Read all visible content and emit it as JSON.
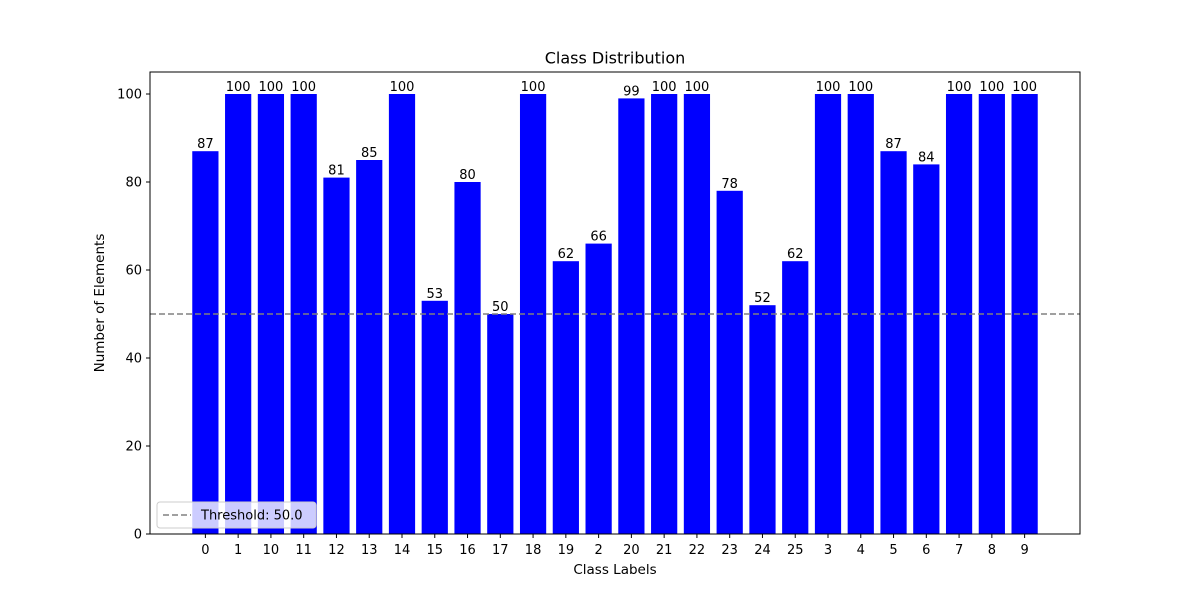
{
  "chart_data": {
    "type": "bar",
    "title": "Class Distribution",
    "xlabel": "Class Labels",
    "ylabel": "Number of Elements",
    "categories": [
      "0",
      "1",
      "10",
      "11",
      "12",
      "13",
      "14",
      "15",
      "16",
      "17",
      "18",
      "19",
      "2",
      "20",
      "21",
      "22",
      "23",
      "24",
      "25",
      "3",
      "4",
      "5",
      "6",
      "7",
      "8",
      "9"
    ],
    "values": [
      87,
      100,
      100,
      100,
      81,
      85,
      100,
      53,
      80,
      50,
      100,
      62,
      66,
      99,
      100,
      100,
      78,
      52,
      62,
      100,
      100,
      87,
      84,
      100,
      100,
      100
    ],
    "ylim": [
      0,
      105
    ],
    "yticks": [
      0,
      20,
      40,
      60,
      80,
      100
    ],
    "grid": false,
    "bar_color": "#0000ff",
    "threshold": {
      "value": 50.0,
      "label": "Threshold: 50.0",
      "color": "#808080",
      "style": "dashed"
    },
    "legend": {
      "placement": "lower-left",
      "entries": [
        "Threshold: 50.0"
      ]
    }
  }
}
